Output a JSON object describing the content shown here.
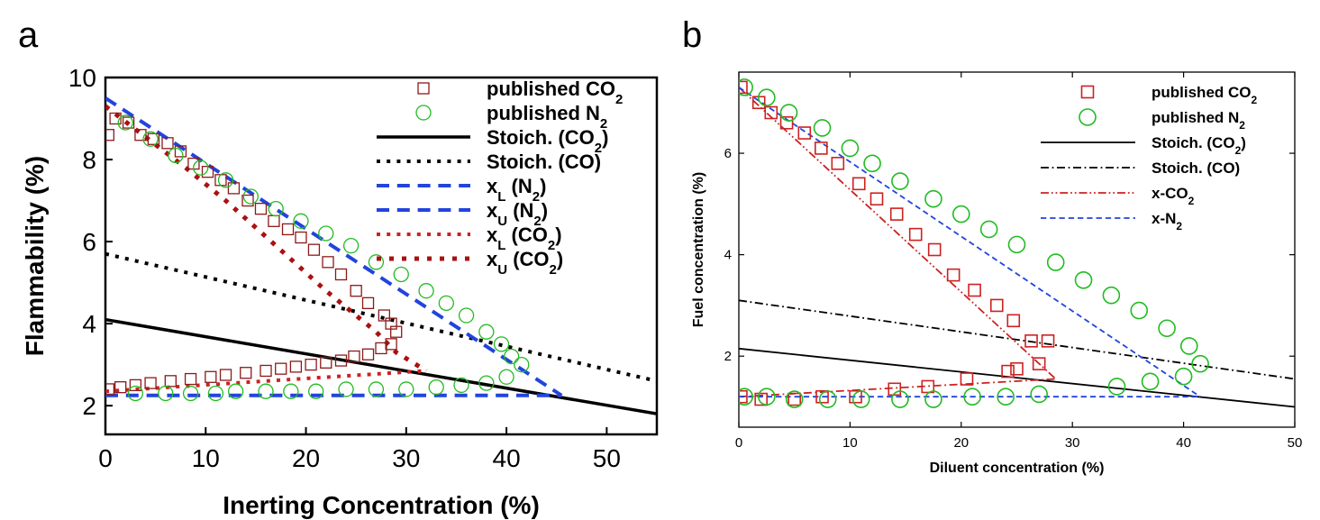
{
  "chart_data": [
    {
      "panel": "a",
      "type": "scatter",
      "xlabel": "Inerting Concentration (%)",
      "ylabel": "Flammability (%)",
      "xlim": [
        0,
        55
      ],
      "ylim": [
        1.3,
        10
      ],
      "xticks": [
        0,
        10,
        20,
        30,
        40,
        50
      ],
      "yticks": [
        2,
        4,
        6,
        8,
        10
      ],
      "grid": false,
      "legend_position": "top-right",
      "series": [
        {
          "name": "published CO",
          "name_sub": "2",
          "kind": "marker",
          "marker": "square",
          "color": "#8b1a1a",
          "x": [
            0.3,
            1.0,
            2.3,
            3.5,
            4.8,
            6.2,
            7.5,
            8.8,
            10.2,
            11.5,
            12.8,
            14.2,
            15.5,
            16.8,
            18.2,
            19.5,
            20.8,
            22.2,
            23.5,
            25.0,
            26.2,
            27.8,
            28.5,
            29.0,
            28.5,
            27.5,
            26.2,
            24.8,
            23.5,
            22.0,
            20.5,
            19.0,
            17.5,
            16.0,
            14.0,
            12.0,
            10.5,
            8.5,
            6.5,
            4.5,
            3.0,
            1.5,
            0.3
          ],
          "y": [
            8.6,
            9.0,
            8.9,
            8.6,
            8.5,
            8.4,
            8.2,
            7.9,
            7.7,
            7.5,
            7.3,
            7.0,
            6.8,
            6.5,
            6.3,
            6.1,
            5.8,
            5.5,
            5.2,
            4.8,
            4.5,
            4.2,
            4.0,
            3.8,
            3.5,
            3.4,
            3.25,
            3.2,
            3.1,
            3.05,
            3.0,
            2.95,
            2.9,
            2.85,
            2.8,
            2.75,
            2.7,
            2.65,
            2.6,
            2.55,
            2.5,
            2.45,
            2.4
          ]
        },
        {
          "name": "published N",
          "name_sub": "2",
          "kind": "marker",
          "marker": "circle",
          "color": "#22bb22",
          "x": [
            2.0,
            4.5,
            7.0,
            9.5,
            12.0,
            14.5,
            17.0,
            19.5,
            22.0,
            24.5,
            27.0,
            29.5,
            32.0,
            34.0,
            36.0,
            38.0,
            39.5,
            40.5,
            41.5,
            40.0,
            38.0,
            35.5,
            33.0,
            30.0,
            27.0,
            24.0,
            21.0,
            18.5,
            16.0,
            13.0,
            11.0,
            8.5,
            6.0,
            3.0
          ],
          "y": [
            8.9,
            8.5,
            8.1,
            7.8,
            7.5,
            7.1,
            6.8,
            6.5,
            6.2,
            5.9,
            5.5,
            5.2,
            4.8,
            4.5,
            4.2,
            3.8,
            3.5,
            3.2,
            3.0,
            2.7,
            2.55,
            2.5,
            2.45,
            2.4,
            2.4,
            2.4,
            2.35,
            2.35,
            2.35,
            2.35,
            2.3,
            2.3,
            2.3,
            2.3
          ]
        },
        {
          "name": "Stoich. (CO",
          "name_sub": "2",
          "name_after": ")",
          "kind": "line",
          "dash": "solid",
          "color": "#000000",
          "width": 3.5,
          "x": [
            0,
            55
          ],
          "y": [
            4.1,
            1.8
          ]
        },
        {
          "name": "Stoich. (CO)",
          "kind": "line",
          "dash": "dotted",
          "color": "#000000",
          "width": 4,
          "x": [
            0,
            55
          ],
          "y": [
            5.7,
            2.6
          ]
        },
        {
          "name": "x",
          "name_sub": "L",
          "name_after": " (N",
          "name_sub2": "2",
          "name_after2": ")",
          "kind": "line",
          "dash": "dashed",
          "color": "#2244dd",
          "width": 4,
          "x": [
            0,
            45.5
          ],
          "y": [
            2.25,
            2.25
          ]
        },
        {
          "name": "x",
          "name_sub": "U",
          "name_after": " (N",
          "name_sub2": "2",
          "name_after2": ")",
          "kind": "line",
          "dash": "dashed",
          "color": "#2244dd",
          "width": 4,
          "x": [
            0,
            45.5
          ],
          "y": [
            9.5,
            2.25
          ]
        },
        {
          "name": "x",
          "name_sub": "L",
          "name_after": " (CO",
          "name_sub2": "2",
          "name_after2": ")",
          "kind": "line",
          "dash": "dotted",
          "color": "#cc2222",
          "width": 4,
          "x": [
            0,
            32
          ],
          "y": [
            2.35,
            2.85
          ]
        },
        {
          "name": "x",
          "name_sub": "U",
          "name_after": " (CO",
          "name_sub2": "2",
          "name_after2": ")",
          "kind": "line",
          "dash": "dotted",
          "color": "#aa1111",
          "width": 5,
          "x": [
            0,
            8,
            12,
            17,
            22,
            27,
            29,
            32
          ],
          "y": [
            9.3,
            7.8,
            7.0,
            5.9,
            4.8,
            3.8,
            3.3,
            2.85
          ]
        }
      ]
    },
    {
      "panel": "b",
      "type": "scatter",
      "xlabel": "Diluent concentration (%)",
      "ylabel": "Fuel concentration (%)",
      "xlim": [
        0,
        50
      ],
      "ylim": [
        0.6,
        7.6
      ],
      "xticks": [
        0,
        10,
        20,
        30,
        40,
        50
      ],
      "yticks": [
        2,
        4,
        6
      ],
      "grid": false,
      "legend_position": "top-right",
      "series": [
        {
          "name": "published CO",
          "name_sub": "2",
          "kind": "marker",
          "marker": "square",
          "color": "#cc2222",
          "x": [
            0.2,
            1.8,
            2.9,
            4.3,
            5.9,
            7.4,
            8.9,
            10.8,
            12.4,
            14.2,
            15.9,
            17.6,
            19.3,
            21.2,
            23.2,
            24.7,
            26.3,
            27.8,
            27.0,
            25.0,
            24.2,
            20.5,
            17.0,
            14.0,
            10.5,
            7.5,
            5.0,
            2.0,
            0.2
          ],
          "y": [
            7.3,
            7.0,
            6.8,
            6.6,
            6.4,
            6.1,
            5.8,
            5.4,
            5.1,
            4.8,
            4.4,
            4.1,
            3.6,
            3.3,
            3.0,
            2.7,
            2.3,
            2.3,
            1.85,
            1.75,
            1.7,
            1.55,
            1.4,
            1.35,
            1.2,
            1.2,
            1.15,
            1.15,
            1.2
          ]
        },
        {
          "name": "published N",
          "name_sub": "2",
          "kind": "marker",
          "marker": "circle",
          "color": "#22bb22",
          "x": [
            0.5,
            2.5,
            4.5,
            7.5,
            10.0,
            12.0,
            14.5,
            17.5,
            20.0,
            22.5,
            25.0,
            28.5,
            31.0,
            33.5,
            36.0,
            38.5,
            40.5,
            41.5,
            40.0,
            37.0,
            34.0,
            27.0,
            24.0,
            21.0,
            17.5,
            14.5,
            11.0,
            8.0,
            5.0,
            2.5,
            0.5
          ],
          "y": [
            7.3,
            7.1,
            6.8,
            6.5,
            6.1,
            5.8,
            5.45,
            5.1,
            4.8,
            4.5,
            4.2,
            3.85,
            3.5,
            3.2,
            2.9,
            2.55,
            2.2,
            1.85,
            1.6,
            1.5,
            1.4,
            1.25,
            1.2,
            1.2,
            1.15,
            1.15,
            1.15,
            1.15,
            1.15,
            1.2,
            1.2
          ]
        },
        {
          "name": "Stoich. (CO",
          "name_sub": "2",
          "name_after": ")",
          "kind": "line",
          "dash": "solid",
          "color": "#000000",
          "width": 1.8,
          "x": [
            0,
            50
          ],
          "y": [
            2.15,
            1.0
          ]
        },
        {
          "name": "Stoich. (CO)",
          "kind": "line",
          "dash": "dashdot",
          "color": "#000000",
          "width": 1.8,
          "x": [
            0,
            50
          ],
          "y": [
            3.1,
            1.55
          ]
        },
        {
          "name": "x-CO",
          "name_sub": "2",
          "kind": "line",
          "dash": "dashdotdot",
          "color": "#cc2222",
          "width": 1.8,
          "x": [
            0,
            28.5
          ],
          "y": [
            7.3,
            1.55
          ]
        },
        {
          "name": "x-CO",
          "name_sub": "2",
          "kind": "line",
          "dash": "dashdot",
          "color": "#cc2222",
          "width": 1.8,
          "hide_legend": true,
          "x": [
            0,
            28.5
          ],
          "y": [
            1.2,
            1.55
          ]
        },
        {
          "name": "x-N",
          "name_sub": "2",
          "kind": "line",
          "dash": "dashed",
          "color": "#2244dd",
          "width": 1.8,
          "x": [
            0,
            41.5
          ],
          "y": [
            7.3,
            1.2
          ]
        },
        {
          "name": "x-N",
          "name_sub": "2",
          "kind": "line",
          "dash": "dashed",
          "color": "#2244dd",
          "width": 1.8,
          "hide_legend": true,
          "x": [
            0,
            41.5
          ],
          "y": [
            1.2,
            1.2
          ]
        }
      ]
    }
  ],
  "panel_labels": {
    "a": "a",
    "b": "b"
  }
}
